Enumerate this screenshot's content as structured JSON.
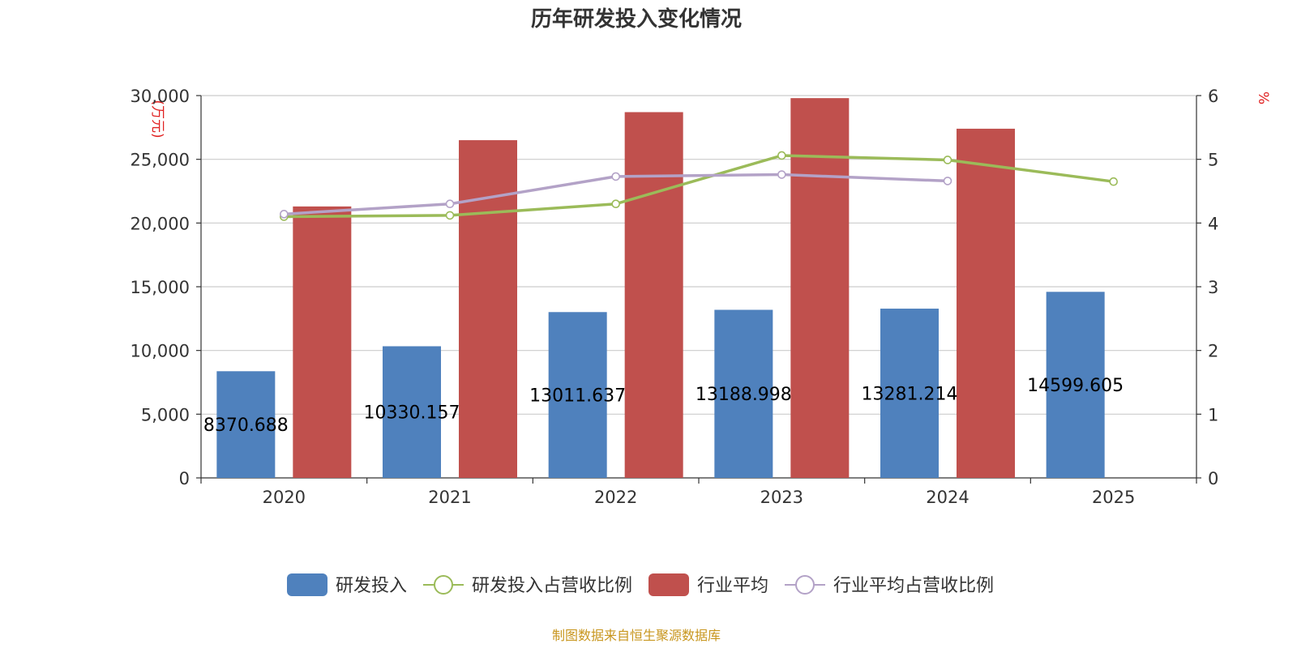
{
  "chart_data": {
    "type": "bar",
    "title": "历年研发投入变化情况",
    "categories": [
      "2020",
      "2021",
      "2022",
      "2023",
      "2024",
      "2025"
    ],
    "y_left": {
      "unit": "(万元)",
      "range": [
        0,
        30000
      ],
      "ticks": [
        "0",
        "5,000",
        "10,000",
        "15,000",
        "20,000",
        "25,000",
        "30,000"
      ]
    },
    "y_right": {
      "unit": "%",
      "range": [
        0,
        6
      ],
      "ticks": [
        "0",
        "1",
        "2",
        "3",
        "4",
        "5",
        "6"
      ]
    },
    "series": [
      {
        "name": "研发投入",
        "type": "bar",
        "axis": "left",
        "color": "#4f81bd",
        "values": [
          8370.688,
          10330.157,
          13011.637,
          13188.998,
          13281.214,
          14599.605
        ],
        "labels": [
          "8370.688",
          "10330.157",
          "13011.637",
          "13188.998",
          "13281.214",
          "14599.605"
        ]
      },
      {
        "name": "研发投入占营收比例",
        "type": "line",
        "axis": "right",
        "color": "#9bbb59",
        "values": [
          4.1,
          4.12,
          4.3,
          5.06,
          4.99,
          4.65
        ]
      },
      {
        "name": "行业平均",
        "type": "bar",
        "axis": "left",
        "color": "#c0504d",
        "values": [
          21300,
          26500,
          28700,
          29800,
          27400,
          null
        ]
      },
      {
        "name": "行业平均占营收比例",
        "type": "line",
        "axis": "right",
        "color": "#b3a2c7",
        "values": [
          4.14,
          4.3,
          4.73,
          4.76,
          4.66,
          null
        ]
      }
    ],
    "grid": true,
    "legend_position": "bottom"
  },
  "source_note": "制图数据来自恒生聚源数据库"
}
